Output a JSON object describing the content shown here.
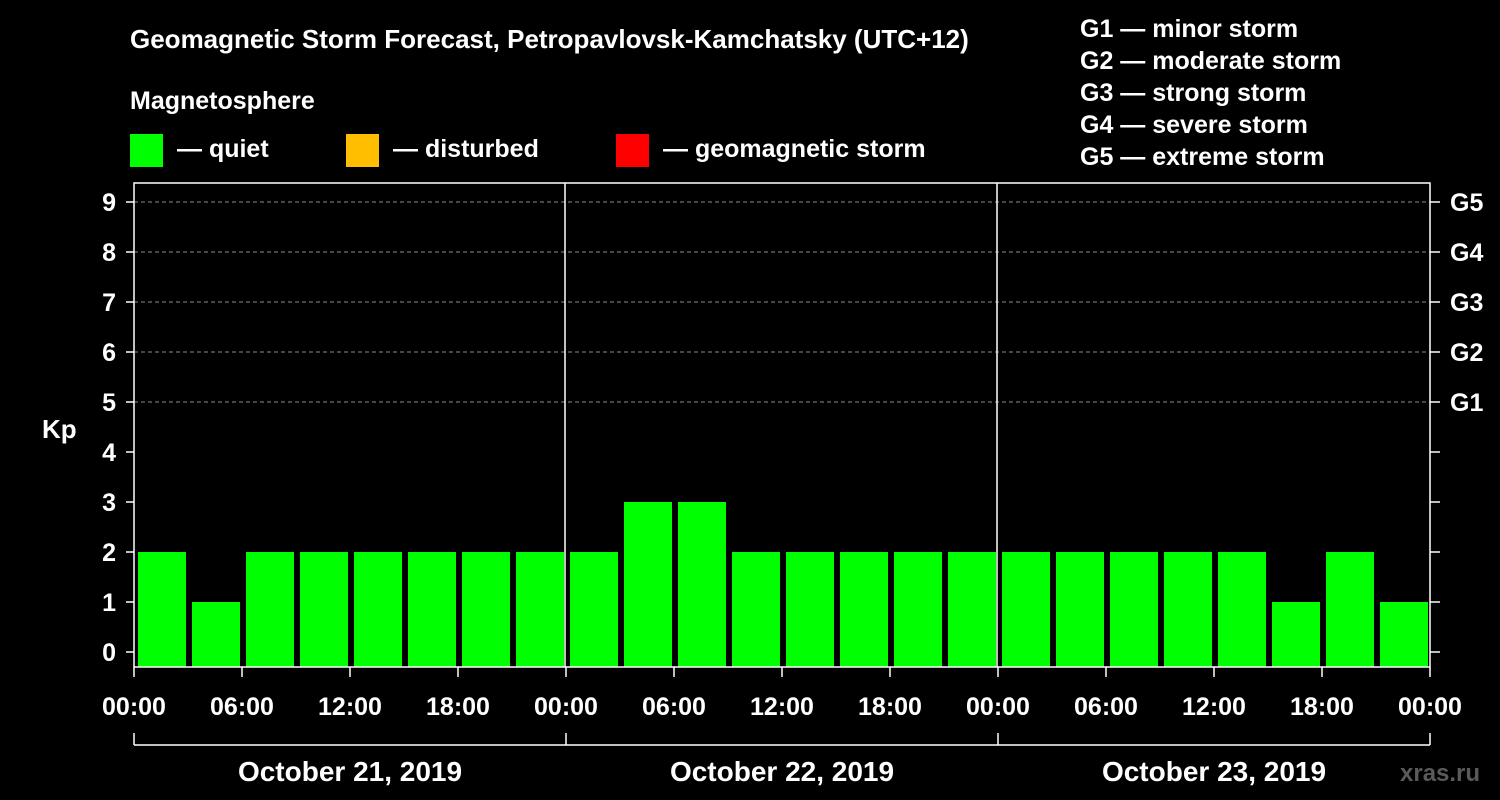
{
  "title": "Geomagnetic Storm Forecast, Petropavlovsk-Kamchatsky (UTC+12)",
  "legend": {
    "heading": "Magnetosphere",
    "items": [
      {
        "label": "— quiet",
        "color": "#00ff00"
      },
      {
        "label": "— disturbed",
        "color": "#ffbf00"
      },
      {
        "label": "— geomagnetic storm",
        "color": "#ff0000"
      }
    ]
  },
  "storm_scale": [
    "G1 — minor storm",
    "G2 — moderate storm",
    "G3 — strong storm",
    "G4 — severe storm",
    "G5 — extreme storm"
  ],
  "watermark": "xras.ru",
  "chart_data": {
    "type": "bar",
    "ylabel": "Kp",
    "ylim": [
      0,
      9
    ],
    "yticks": [
      "0",
      "1",
      "2",
      "3",
      "4",
      "5",
      "6",
      "7",
      "8",
      "9"
    ],
    "right_ticks": [
      {
        "y": 5,
        "label": "G1"
      },
      {
        "y": 6,
        "label": "G2"
      },
      {
        "y": 7,
        "label": "G3"
      },
      {
        "y": 8,
        "label": "G4"
      },
      {
        "y": 9,
        "label": "G5"
      }
    ],
    "grid_lines": [
      5,
      6,
      7,
      8,
      9
    ],
    "x_tick_labels": [
      "00:00",
      "06:00",
      "12:00",
      "18:00",
      "00:00",
      "06:00",
      "12:00",
      "18:00",
      "00:00",
      "06:00",
      "12:00",
      "18:00",
      "00:00"
    ],
    "days": [
      "October 21, 2019",
      "October 22, 2019",
      "October 23, 2019"
    ],
    "series": [
      {
        "values": [
          2,
          1,
          2,
          2,
          2,
          2,
          2,
          2,
          2,
          3,
          3,
          2,
          2,
          2,
          2,
          2,
          2,
          2,
          2,
          2,
          2,
          1,
          2,
          1
        ],
        "color": "#00ff00"
      }
    ]
  }
}
